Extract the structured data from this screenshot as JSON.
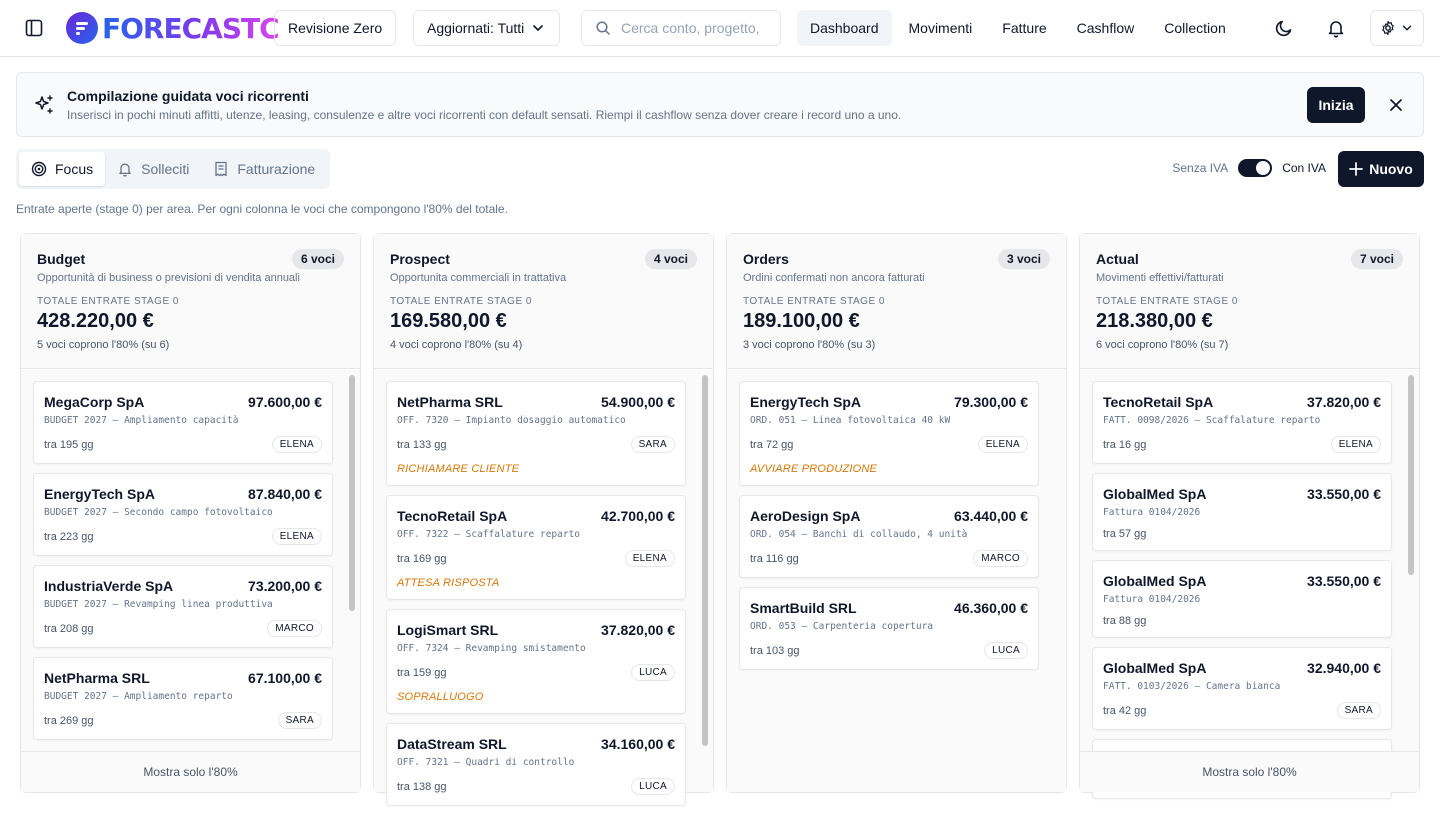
{
  "header": {
    "logo_text": "FORECASTC",
    "revision": "Revisione Zero",
    "updated_filter": "Aggiornati: Tutti",
    "search_placeholder": "Cerca conto, progetto,",
    "nav": [
      {
        "label": "Dashboard",
        "active": true
      },
      {
        "label": "Movimenti",
        "active": false
      },
      {
        "label": "Fatture",
        "active": false
      },
      {
        "label": "Cashflow",
        "active": false
      },
      {
        "label": "Collection",
        "active": false
      }
    ]
  },
  "banner": {
    "title": "Compilazione guidata voci ricorrenti",
    "description": "Inserisci in pochi minuti affitti, utenze, leasing, consulenze e altre voci ricorrenti con default sensati. Riempi il cashflow senza dover creare i record uno a uno.",
    "start_label": "Inizia"
  },
  "tabs": [
    {
      "label": "Focus",
      "icon": "target-icon",
      "active": true
    },
    {
      "label": "Solleciti",
      "icon": "bell-icon",
      "active": false
    },
    {
      "label": "Fatturazione",
      "icon": "receipt-icon",
      "active": false
    }
  ],
  "vat": {
    "off_label": "Senza IVA",
    "on_label": "Con IVA",
    "enabled": true
  },
  "new_label": "Nuovo",
  "subtitle": "Entrate aperte (stage 0) per area. Per ogni colonna le voci che compongono l'80% del totale.",
  "total_label": "TOTALE ENTRATE STAGE 0",
  "footer_label": "Mostra solo l'80%",
  "columns": [
    {
      "title": "Budget",
      "badge": "6 voci",
      "description": "Opportunità di business o previsioni di vendita annuali",
      "total": "428.220,00 €",
      "coverage": "5 voci coprono l'80% (su 6)",
      "has_footer": true,
      "scrollbar": true,
      "cards": [
        {
          "name": "MegaCorp SpA",
          "amount": "97.600,00 €",
          "ref": "BUDGET 2027 – Ampliamento capacità",
          "days": "tra 195 gg",
          "user": "ELENA",
          "action": ""
        },
        {
          "name": "EnergyTech SpA",
          "amount": "87.840,00 €",
          "ref": "BUDGET 2027 – Secondo campo fotovoltaico",
          "days": "tra 223 gg",
          "user": "ELENA",
          "action": ""
        },
        {
          "name": "IndustriaVerde SpA",
          "amount": "73.200,00 €",
          "ref": "BUDGET 2027 – Revamping linea produttiva",
          "days": "tra 208 gg",
          "user": "MARCO",
          "action": ""
        },
        {
          "name": "NetPharma SRL",
          "amount": "67.100,00 €",
          "ref": "BUDGET 2027 – Ampliamento reparto",
          "days": "tra 269 gg",
          "user": "SARA",
          "action": ""
        }
      ]
    },
    {
      "title": "Prospect",
      "badge": "4 voci",
      "description": "Opportunita commerciali in trattativa",
      "total": "169.580,00 €",
      "coverage": "4 voci coprono l'80% (su 4)",
      "has_footer": false,
      "scrollbar": true,
      "cards": [
        {
          "name": "NetPharma SRL",
          "amount": "54.900,00 €",
          "ref": "OFF. 7320 – Impianto dosaggio automatico",
          "days": "tra 133 gg",
          "user": "SARA",
          "action": "RICHIAMARE CLIENTE"
        },
        {
          "name": "TecnoRetail SpA",
          "amount": "42.700,00 €",
          "ref": "OFF. 7322 – Scaffalature reparto",
          "days": "tra 169 gg",
          "user": "ELENA",
          "action": "ATTESA RISPOSTA"
        },
        {
          "name": "LogiSmart SRL",
          "amount": "37.820,00 €",
          "ref": "OFF. 7324 – Revamping smistamento",
          "days": "tra 159 gg",
          "user": "LUCA",
          "action": "SOPRALLUOGO"
        },
        {
          "name": "DataStream SRL",
          "amount": "34.160,00 €",
          "ref": "OFF. 7321 – Quadri di controllo",
          "days": "tra 138 gg",
          "user": "LUCA",
          "action": ""
        }
      ]
    },
    {
      "title": "Orders",
      "badge": "3 voci",
      "description": "Ordini confermati non ancora fatturati",
      "total": "189.100,00 €",
      "coverage": "3 voci coprono l'80% (su 3)",
      "has_footer": false,
      "scrollbar": false,
      "cards": [
        {
          "name": "EnergyTech SpA",
          "amount": "79.300,00 €",
          "ref": "ORD. 051 – Linea fotovoltaica 40 kW",
          "days": "tra 72 gg",
          "user": "ELENA",
          "action": "AVVIARE PRODUZIONE"
        },
        {
          "name": "AeroDesign SpA",
          "amount": "63.440,00 €",
          "ref": "ORD. 054 – Banchi di collaudo, 4 unità",
          "days": "tra 116 gg",
          "user": "MARCO",
          "action": ""
        },
        {
          "name": "SmartBuild SRL",
          "amount": "46.360,00 €",
          "ref": "ORD. 053 – Carpenteria copertura",
          "days": "tra 103 gg",
          "user": "LUCA",
          "action": ""
        }
      ]
    },
    {
      "title": "Actual",
      "badge": "7 voci",
      "description": "Movimenti effettivi/fatturati",
      "total": "218.380,00 €",
      "coverage": "6 voci coprono l'80% (su 7)",
      "has_footer": true,
      "scrollbar": true,
      "cards": [
        {
          "name": "TecnoRetail SpA",
          "amount": "37.820,00 €",
          "ref": "FATT. 0098/2026 – Scaffalature reparto",
          "days": "tra 16 gg",
          "user": "ELENA",
          "action": ""
        },
        {
          "name": "GlobalMed SpA",
          "amount": "33.550,00 €",
          "ref": "Fattura 0104/2026",
          "days": "tra 57 gg",
          "user": "",
          "action": ""
        },
        {
          "name": "GlobalMed SpA",
          "amount": "33.550,00 €",
          "ref": "Fattura 0104/2026",
          "days": "tra 88 gg",
          "user": "",
          "action": ""
        },
        {
          "name": "GlobalMed SpA",
          "amount": "32.940,00 €",
          "ref": "FATT. 0103/2026 – Camera bianca",
          "days": "tra 42 gg",
          "user": "SARA",
          "action": ""
        },
        {
          "name": "",
          "amount": "",
          "ref": "",
          "days": "",
          "user": "",
          "action": ""
        }
      ]
    }
  ]
}
